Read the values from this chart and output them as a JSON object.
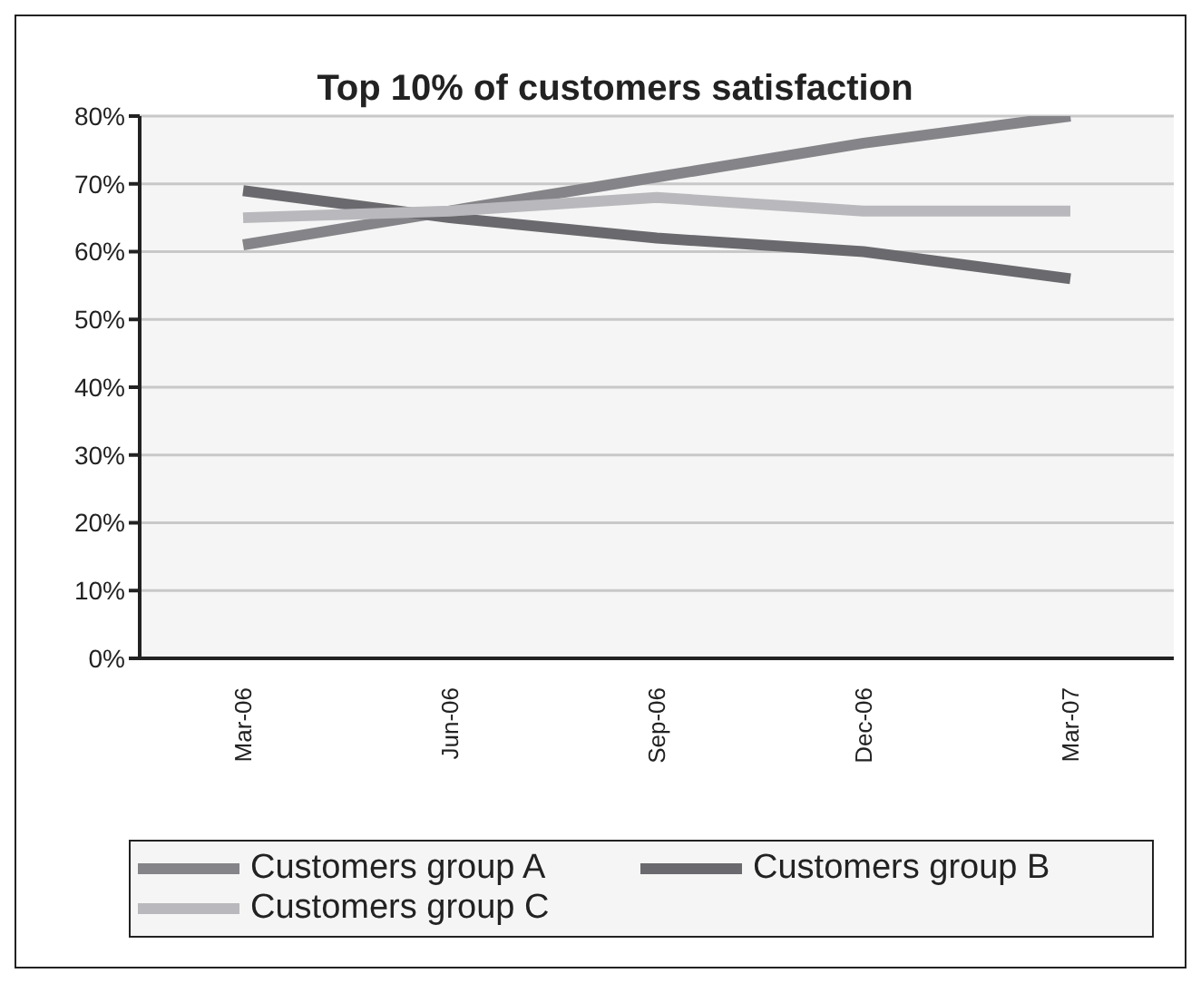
{
  "chart_data": {
    "type": "line",
    "title": "Top 10% of customers satisfaction",
    "categories": [
      "Mar-06",
      "Jun-06",
      "Sep-06",
      "Dec-06",
      "Mar-07"
    ],
    "series": [
      {
        "name": "Customers group A",
        "color": "#858589",
        "values": [
          61,
          66,
          71,
          76,
          80
        ]
      },
      {
        "name": "Customers group B",
        "color": "#6a6a6e",
        "values": [
          69,
          65,
          62,
          60,
          56
        ]
      },
      {
        "name": "Customers group C",
        "color": "#b9b9bd",
        "values": [
          65,
          66,
          68,
          66,
          66
        ]
      }
    ],
    "ylim": [
      0,
      80
    ],
    "yticks": [
      {
        "value": 0,
        "label": "0%"
      },
      {
        "value": 10,
        "label": "10%"
      },
      {
        "value": 20,
        "label": "20%"
      },
      {
        "value": 30,
        "label": "30%"
      },
      {
        "value": 40,
        "label": "40%"
      },
      {
        "value": 50,
        "label": "50%"
      },
      {
        "value": 60,
        "label": "60%"
      },
      {
        "value": 70,
        "label": "70%"
      },
      {
        "value": 80,
        "label": "80%"
      }
    ],
    "grid": "y",
    "legend": "bottom",
    "marker": "none",
    "line_style": "solid"
  }
}
